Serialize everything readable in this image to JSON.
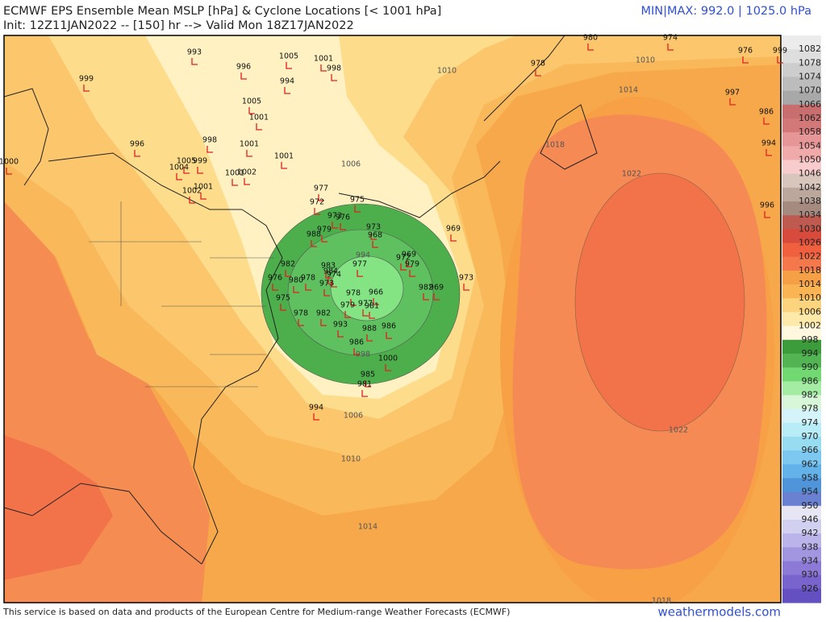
{
  "header": {
    "title": "ECMWF EPS Ensemble Mean MSLP [hPa] & Cyclone Locations [< 1001 hPa]",
    "subtitle": "Init: 12Z11JAN2022 -- [150] hr --> Valid Mon 18Z17JAN2022",
    "minmax": "MIN|MAX: 992.0 | 1025.0 hPa"
  },
  "colorbar": {
    "levels": [
      1082,
      1078,
      1074,
      1070,
      1066,
      1062,
      1058,
      1054,
      1050,
      1046,
      1042,
      1038,
      1034,
      1030,
      1026,
      1022,
      1018,
      1014,
      1010,
      1006,
      1002,
      998,
      994,
      990,
      986,
      982,
      978,
      974,
      970,
      966,
      962,
      958,
      954,
      950,
      946,
      942,
      938,
      934,
      930,
      926
    ],
    "colors": [
      "#ececec",
      "#dedede",
      "#cdcdcd",
      "#bcbcbc",
      "#a8a8a8",
      "#c86e6e",
      "#d27878",
      "#e69696",
      "#f0aaaa",
      "#f8cccc",
      "#d8c6bc",
      "#bba79c",
      "#a58a80",
      "#be5a50",
      "#d84a3c",
      "#f0603f",
      "#f5784c",
      "#f5a046",
      "#fab454",
      "#fcd47e",
      "#fdeaaa",
      "#fff8de",
      "#3c9c3c",
      "#52b452",
      "#72d872",
      "#a4eca4",
      "#d8f6d8",
      "#d4f4fa",
      "#b8ecf6",
      "#98dcf2",
      "#7cc8f0",
      "#64b2ea",
      "#5094da",
      "#6a80d0",
      "#e6e6f5",
      "#d2d0f0",
      "#bab4ea",
      "#a296e0",
      "#8c7ad6",
      "#7864cc",
      "#6450c0"
    ]
  },
  "contour_labels": [
    "1010",
    "1010",
    "1014",
    "1018",
    "1022",
    "1006",
    "994",
    "998",
    "1006",
    "1010",
    "1014",
    "1022",
    "1018"
  ],
  "cyclones": [
    "993",
    "1005",
    "1001",
    "998",
    "996",
    "994",
    "999",
    "1005",
    "1001",
    "996",
    "998",
    "1001",
    "1001",
    "1000",
    "1004",
    "1005",
    "999",
    "1002",
    "1001",
    "1002",
    "1001",
    "980",
    "974",
    "978",
    "976",
    "999",
    "997",
    "986",
    "994",
    "996",
    "977",
    "975",
    "972",
    "976",
    "973",
    "973",
    "979",
    "988",
    "968",
    "969",
    "977",
    "969",
    "972",
    "979",
    "973",
    "982",
    "976",
    "983",
    "984",
    "974",
    "978",
    "973",
    "980",
    "975",
    "978",
    "966",
    "977",
    "981",
    "979",
    "982",
    "969",
    "978",
    "982",
    "993",
    "988",
    "986",
    "986",
    "1000",
    "985",
    "981",
    "994"
  ],
  "footer": {
    "credit": "This service is based on data and products of the European Centre for Medium-range Weather Forecasts (ECMWF)",
    "site": "weathermodels.com"
  }
}
